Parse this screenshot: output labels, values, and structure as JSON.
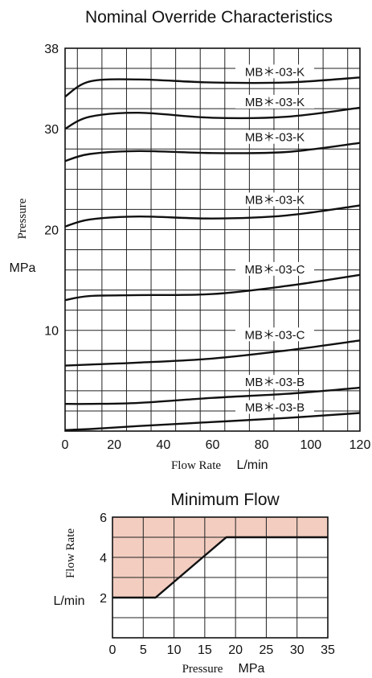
{
  "chart_data": [
    {
      "type": "line",
      "title": "Nominal Override Characteristics",
      "xlabel": "Flow Rate",
      "xunit": "L/min",
      "ylabel": "Pressure",
      "yunit": "MPa",
      "xlim": [
        0,
        120
      ],
      "ylim": [
        0,
        38
      ],
      "x_ticks": [
        "0",
        "20",
        "40",
        "60",
        "80",
        "100",
        "120"
      ],
      "y_ticks": [
        "10",
        "20",
        "30",
        "38"
      ],
      "grid": true,
      "series": [
        {
          "name": "MB＊-03-K",
          "x": [
            0,
            10,
            30,
            60,
            90,
            120
          ],
          "y": [
            33.2,
            34.7,
            34.9,
            34.6,
            34.6,
            35.1
          ]
        },
        {
          "name": "MB＊-03-K",
          "x": [
            0,
            10,
            30,
            60,
            90,
            120
          ],
          "y": [
            30.0,
            31.2,
            31.6,
            31.1,
            31.2,
            32.1
          ]
        },
        {
          "name": "MB＊-03-K",
          "x": [
            0,
            10,
            30,
            60,
            90,
            120
          ],
          "y": [
            26.8,
            27.5,
            27.8,
            27.6,
            27.7,
            28.6
          ]
        },
        {
          "name": "MB＊-03-K",
          "x": [
            0,
            10,
            30,
            60,
            90,
            120
          ],
          "y": [
            20.3,
            21.0,
            21.3,
            21.1,
            21.4,
            22.4
          ]
        },
        {
          "name": "MB＊-03-C",
          "x": [
            0,
            10,
            30,
            60,
            90,
            120
          ],
          "y": [
            13.0,
            13.4,
            13.5,
            13.6,
            14.4,
            15.5
          ]
        },
        {
          "name": "MB＊-03-C",
          "x": [
            0,
            10,
            30,
            60,
            90,
            120
          ],
          "y": [
            6.5,
            6.6,
            6.8,
            7.2,
            8.0,
            9.0
          ]
        },
        {
          "name": "MB＊-03-B",
          "x": [
            0,
            10,
            30,
            60,
            90,
            120
          ],
          "y": [
            2.7,
            2.7,
            2.8,
            3.3,
            3.7,
            4.3
          ]
        },
        {
          "name": "MB＊-03-B",
          "x": [
            0,
            10,
            30,
            60,
            90,
            120
          ],
          "y": [
            0.1,
            0.2,
            0.5,
            0.9,
            1.3,
            1.8
          ]
        }
      ]
    },
    {
      "type": "area",
      "title": "Minimum Flow",
      "xlabel": "Pressure",
      "xunit": "MPa",
      "ylabel": "Flow Rate",
      "yunit": "L/min",
      "xlim": [
        0,
        35
      ],
      "ylim": [
        0,
        6
      ],
      "x_ticks": [
        "0",
        "5",
        "10",
        "15",
        "20",
        "25",
        "30",
        "35"
      ],
      "y_ticks": [
        "2",
        "4",
        "6"
      ],
      "grid": true,
      "fill_color": "#f2cdc0",
      "boundary": {
        "x": [
          0,
          7,
          18.5,
          35
        ],
        "y": [
          2,
          2,
          5,
          5
        ]
      }
    }
  ]
}
